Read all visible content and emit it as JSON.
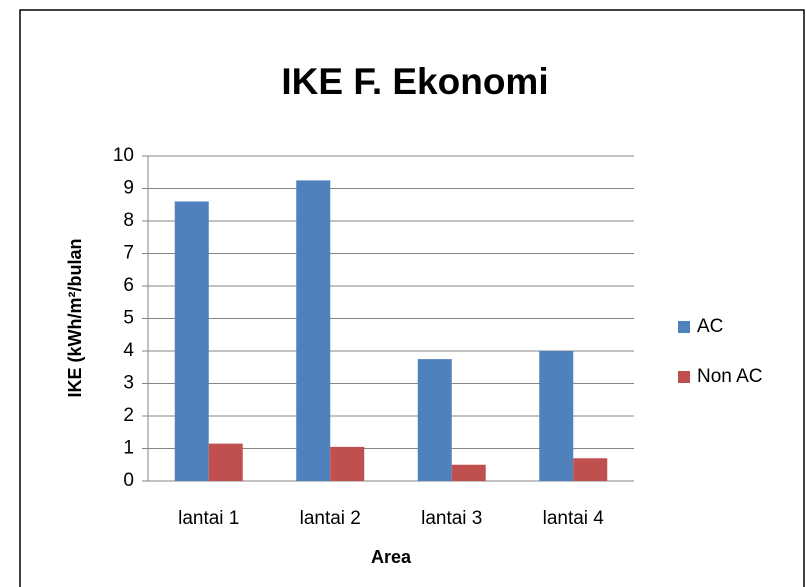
{
  "chart_data": {
    "type": "bar",
    "title": "IKE F. Ekonomi",
    "x_label": "Area",
    "y_label": "IKE (kWh/m²/bulan",
    "categories": [
      "lantai 1",
      "lantai 2",
      "lantai 3",
      "lantai 4"
    ],
    "series": [
      {
        "name": "AC",
        "color": "#4f81bd",
        "values": [
          8.6,
          9.25,
          3.75,
          4.0
        ]
      },
      {
        "name": "Non AC",
        "color": "#c0504d",
        "values": [
          1.15,
          1.05,
          0.5,
          0.7
        ]
      }
    ],
    "ylim": [
      0,
      10
    ],
    "yticks": [
      0,
      1,
      2,
      3,
      4,
      5,
      6,
      7,
      8,
      9,
      10
    ],
    "grid": true,
    "legend": "right"
  }
}
